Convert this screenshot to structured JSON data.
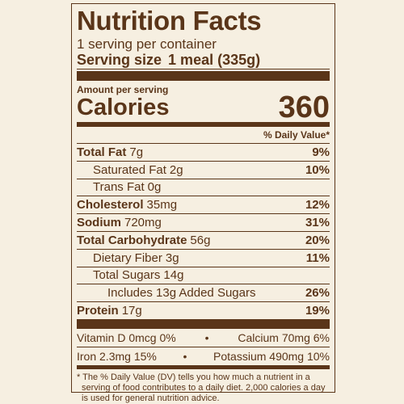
{
  "header": {
    "title": "Nutrition Facts",
    "servings": "1 serving per container",
    "serving_size_label": "Serving size",
    "serving_size_value": "1 meal (335g)"
  },
  "calories": {
    "amount_per_serving": "Amount per serving",
    "label": "Calories",
    "value": "360"
  },
  "dv_header": "% Daily Value*",
  "rows": [
    {
      "name": "Total Fat",
      "amount": "7g",
      "dv": "9%"
    },
    {
      "name": "Saturated Fat",
      "amount": "2g",
      "dv": "10%"
    },
    {
      "name": "Trans Fat",
      "amount": "0g"
    },
    {
      "name": "Cholesterol",
      "amount": "35mg",
      "dv": "12%"
    },
    {
      "name": "Sodium",
      "amount": "720mg",
      "dv": "31%"
    },
    {
      "name": "Total Carbohydrate",
      "amount": "56g",
      "dv": "20%"
    },
    {
      "name": "Dietary Fiber",
      "amount": "3g",
      "dv": "11%"
    },
    {
      "name": "Total Sugars",
      "amount": "14g"
    },
    {
      "name": "Includes 13g Added Sugars",
      "dv": "26%"
    },
    {
      "name": "Protein",
      "amount": "17g",
      "dv": "19%"
    }
  ],
  "vitamins": [
    [
      "Vitamin D 0mcg 0%",
      "Calcium 70mg 6%"
    ],
    [
      "Iron 2.3mg 15%",
      "Potassium 490mg 10%"
    ]
  ],
  "footnote": "* The % Daily Value (DV) tells you how much a nutrient in a serving of food contributes to a daily diet. 2,000 calories a day is used for general nutrition advice."
}
